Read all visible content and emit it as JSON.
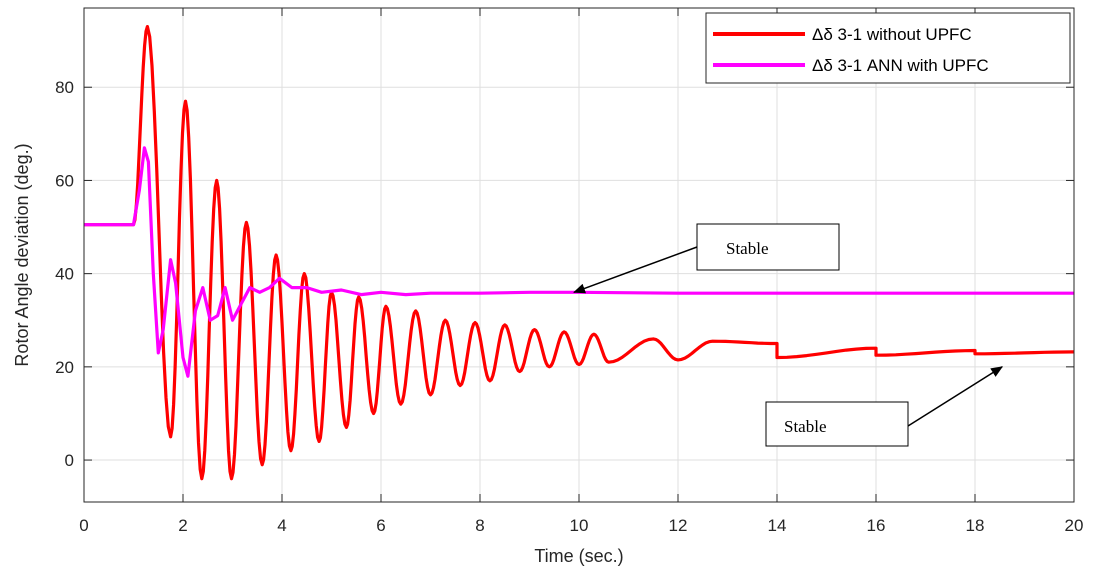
{
  "chart_data": {
    "type": "line",
    "xlabel": "Time (sec.)",
    "ylabel": "Rotor Angle deviation (deg.)",
    "xlim": [
      0,
      20
    ],
    "ylim": [
      -9,
      97
    ],
    "xticks": [
      0,
      2,
      4,
      6,
      8,
      10,
      12,
      14,
      16,
      18,
      20
    ],
    "yticks": [
      0,
      20,
      40,
      60,
      80
    ],
    "grid": true,
    "legend_position": "top-right",
    "series": [
      {
        "name": "Δδ 3-1 without UPFC",
        "color": "#ff0000",
        "model": {
          "pre_fault_value": 50.5,
          "fault_time": 1.0,
          "final_value": 23.0,
          "peaks": [
            [
              1.28,
              93
            ],
            [
              2.05,
              77
            ],
            [
              2.68,
              60
            ],
            [
              3.28,
              51
            ],
            [
              3.88,
              44
            ],
            [
              4.45,
              40
            ],
            [
              5.0,
              36
            ],
            [
              5.55,
              35
            ],
            [
              6.1,
              33
            ],
            [
              6.7,
              32
            ],
            [
              7.3,
              30
            ],
            [
              7.9,
              29.5
            ],
            [
              8.5,
              29
            ],
            [
              9.1,
              28
            ],
            [
              9.7,
              27.5
            ],
            [
              10.3,
              27
            ],
            [
              11.5,
              26
            ],
            [
              12.7,
              25.5
            ],
            [
              14.0,
              25
            ],
            [
              16.0,
              24
            ],
            [
              18.0,
              23.5
            ],
            [
              20.0,
              23.2
            ]
          ],
          "troughs": [
            [
              1.75,
              5
            ],
            [
              2.38,
              -4
            ],
            [
              2.98,
              -4
            ],
            [
              3.6,
              -1
            ],
            [
              4.18,
              2
            ],
            [
              4.75,
              4
            ],
            [
              5.3,
              7
            ],
            [
              5.85,
              10
            ],
            [
              6.4,
              12
            ],
            [
              7.0,
              14
            ],
            [
              7.6,
              16
            ],
            [
              8.2,
              17
            ],
            [
              8.8,
              19
            ],
            [
              9.4,
              20
            ],
            [
              10.0,
              20.5
            ],
            [
              10.6,
              21
            ],
            [
              12.0,
              21.5
            ],
            [
              14.0,
              22
            ],
            [
              16.0,
              22.5
            ],
            [
              18.0,
              22.8
            ],
            [
              20.0,
              23
            ]
          ]
        }
      },
      {
        "name": "Δδ 3-1  ANN with UPFC",
        "color": "#ff00ff",
        "points": [
          [
            0,
            50.5
          ],
          [
            1.0,
            50.5
          ],
          [
            1.12,
            58
          ],
          [
            1.22,
            67
          ],
          [
            1.3,
            64
          ],
          [
            1.4,
            40
          ],
          [
            1.5,
            23
          ],
          [
            1.6,
            28
          ],
          [
            1.75,
            43
          ],
          [
            1.85,
            38
          ],
          [
            2.0,
            22
          ],
          [
            2.1,
            18
          ],
          [
            2.25,
            32
          ],
          [
            2.4,
            37
          ],
          [
            2.55,
            30
          ],
          [
            2.7,
            31
          ],
          [
            2.85,
            37
          ],
          [
            3.0,
            30
          ],
          [
            3.15,
            33
          ],
          [
            3.35,
            37
          ],
          [
            3.55,
            36
          ],
          [
            3.75,
            37
          ],
          [
            3.95,
            39
          ],
          [
            4.2,
            37
          ],
          [
            4.5,
            37
          ],
          [
            4.8,
            36
          ],
          [
            5.2,
            36.5
          ],
          [
            5.6,
            35.5
          ],
          [
            6.0,
            36
          ],
          [
            6.5,
            35.5
          ],
          [
            7.0,
            35.8
          ],
          [
            8.0,
            35.8
          ],
          [
            9.0,
            36
          ],
          [
            10.0,
            36
          ],
          [
            12.0,
            35.8
          ],
          [
            16.0,
            35.8
          ],
          [
            20.0,
            35.8
          ]
        ]
      }
    ],
    "annotations": [
      {
        "text": "Stable",
        "target": [
          9.9,
          36
        ]
      },
      {
        "text": "Stable",
        "target": [
          18.55,
          20
        ]
      }
    ]
  }
}
